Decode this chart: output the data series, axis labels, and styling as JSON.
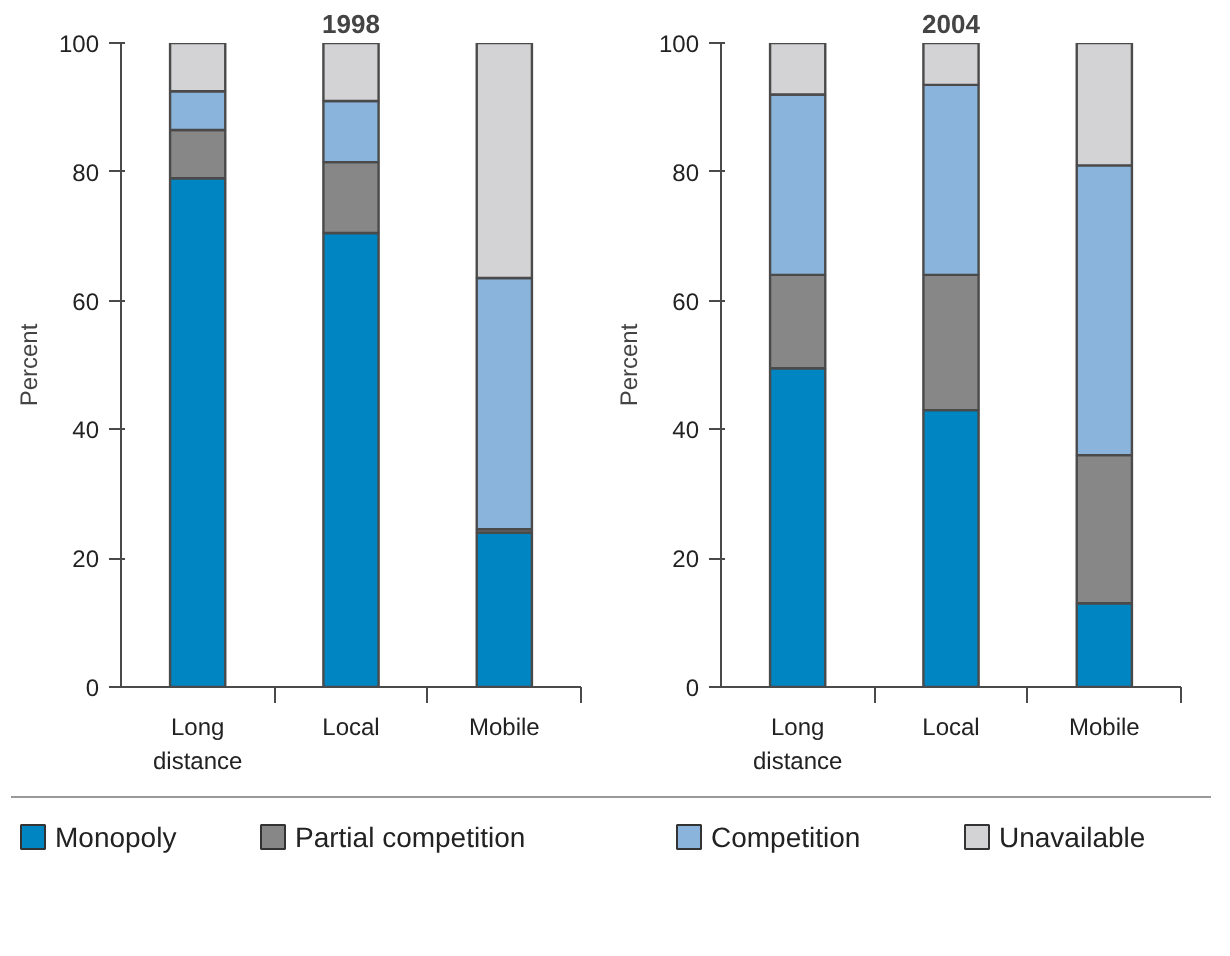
{
  "chart_data": [
    {
      "type": "bar",
      "title": "1998",
      "ylabel": "Percent",
      "categories": [
        "Long distance",
        "Local",
        "Mobile"
      ],
      "stacked": true,
      "ylim": [
        0,
        100
      ],
      "yticks": [
        0,
        20,
        40,
        60,
        80,
        100
      ],
      "legend": "bottom",
      "series": [
        {
          "name": "Monopoly",
          "color": "#0085c3",
          "values": [
            79,
            70.5,
            24
          ]
        },
        {
          "name": "Partial competition",
          "color": "#878787",
          "values": [
            7.5,
            11,
            0.5
          ]
        },
        {
          "name": "Competition",
          "color": "#8ab4dc",
          "values": [
            6,
            9.5,
            39
          ]
        },
        {
          "name": "Unavailable",
          "color": "#d3d2d4",
          "values": [
            7.5,
            9,
            36.5
          ]
        }
      ]
    },
    {
      "type": "bar",
      "title": "2004",
      "ylabel": "Percent",
      "categories": [
        "Long distance",
        "Local",
        "Mobile"
      ],
      "stacked": true,
      "ylim": [
        0,
        100
      ],
      "yticks": [
        0,
        20,
        40,
        60,
        80,
        100
      ],
      "series": [
        {
          "color": "#0085c3",
          "values": [
            49.5,
            43,
            13
          ]
        },
        {
          "color": "#878787",
          "values": [
            14.5,
            21,
            23
          ]
        },
        {
          "color": "#8ab4dc",
          "values": [
            28,
            29.5,
            45
          ]
        },
        {
          "color": "#d3d2d4",
          "values": [
            8,
            6.5,
            19
          ]
        }
      ]
    }
  ]
}
